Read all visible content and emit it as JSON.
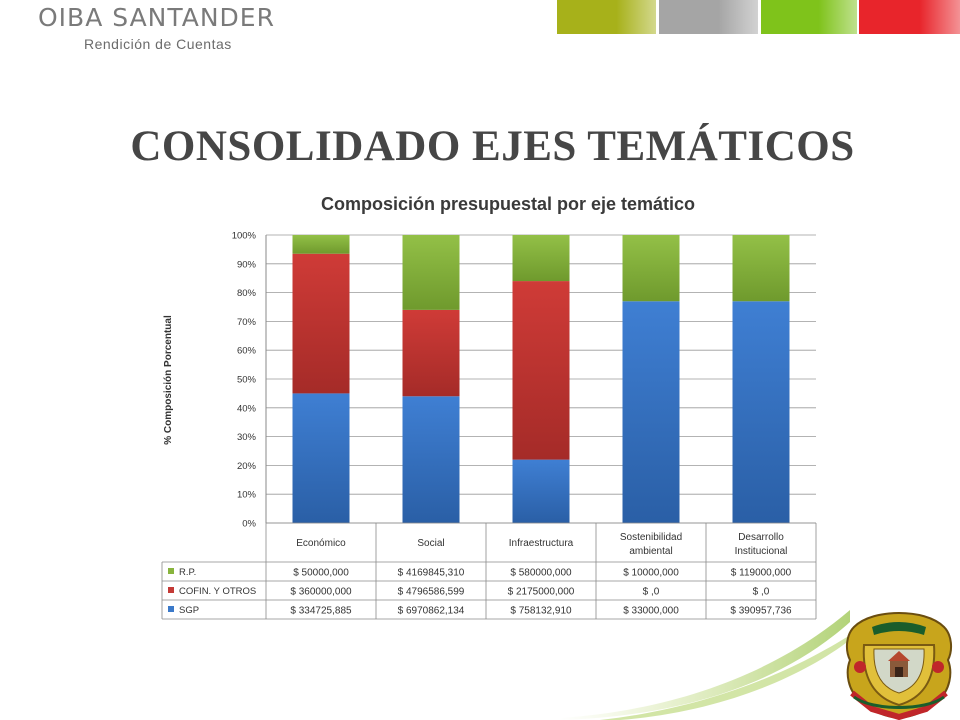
{
  "header": {
    "brand_name": "OIBA SANTANDER",
    "brand_subtitle": "Rendición de Cuentas"
  },
  "colors": {
    "strip": [
      "#a7b11a",
      "#a5a5a5",
      "#7fc31b",
      "#e8252b"
    ],
    "sgp": "#3b79c9",
    "cofin": "#c43a36",
    "rp": "#88b43d"
  },
  "slide": {
    "title": "CONSOLIDADO EJES TEMÁTICOS"
  },
  "chart_data": {
    "type": "bar",
    "stacked": "percent",
    "title": "Composición presupuestal por eje temático",
    "ylabel": "% Composición Porcentual",
    "xlabel": "",
    "ylim": [
      0,
      100
    ],
    "yticks": [
      "0%",
      "10%",
      "20%",
      "30%",
      "40%",
      "50%",
      "60%",
      "70%",
      "80%",
      "90%",
      "100%"
    ],
    "grid": true,
    "legend": "data-table",
    "categories": [
      [
        "Económico"
      ],
      [
        "Social"
      ],
      [
        "Infraestructura"
      ],
      [
        "Sostenibilidad",
        "ambiental"
      ],
      [
        "Desarrollo",
        "Institucional"
      ]
    ],
    "series": [
      {
        "name": "SGP",
        "values": [
          45,
          44,
          22,
          77,
          77
        ],
        "labels": [
          "$ 334725,885",
          "$ 6970862,134",
          "$ 758132,910",
          "$ 33000,000",
          "$ 390957,736"
        ]
      },
      {
        "name": "COFIN. Y OTROS",
        "values": [
          48.5,
          30,
          62,
          0,
          0
        ],
        "labels": [
          "$ 360000,000",
          "$ 4796586,599",
          "$ 2175000,000",
          "$ ,0",
          "$ ,0"
        ]
      },
      {
        "name": "R.P.",
        "values": [
          6.5,
          26,
          16,
          23,
          23
        ],
        "labels": [
          "$ 50000,000",
          "$ 4169845,310",
          "$ 580000,000",
          "$ 10000,000",
          "$ 119000,000"
        ]
      }
    ],
    "table_order": [
      "R.P.",
      "COFIN. Y OTROS",
      "SGP"
    ]
  }
}
